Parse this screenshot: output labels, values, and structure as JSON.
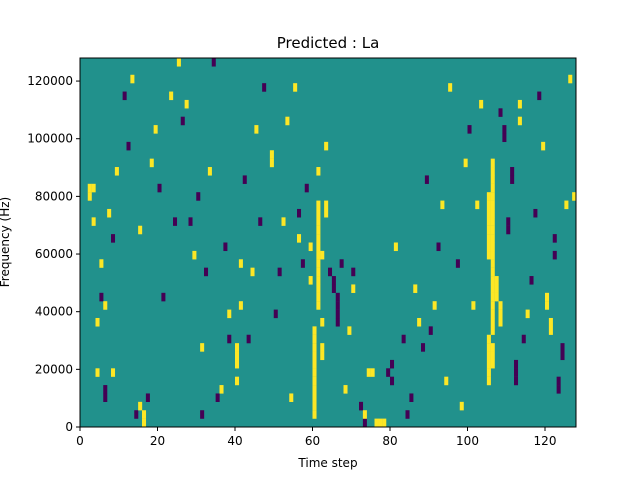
{
  "chart_data": {
    "type": "heatmap",
    "title": "Predicted : La",
    "xlabel": "Time step",
    "ylabel": "Frequency (Hz)",
    "xlim": [
      0,
      128
    ],
    "ylim": [
      0,
      128000
    ],
    "x_ticks": [
      0,
      20,
      40,
      60,
      80,
      100,
      120
    ],
    "y_ticks": [
      0,
      20000,
      40000,
      60000,
      80000,
      100000,
      120000
    ],
    "y_tick_labels": [
      "0",
      "20000",
      "40000",
      "60000",
      "80000",
      "100000",
      "120000"
    ],
    "grid": false,
    "legend": "none",
    "colormap": "viridis",
    "colors": {
      "low": "#440154",
      "mid": "#21918c",
      "high": "#fde725"
    },
    "value_levels": {
      "low": -1,
      "mid": 0,
      "high": 1
    },
    "rows": 44,
    "cols": 128,
    "bin_hz": 2909,
    "cells": [
      [
        2,
        28,
        1
      ],
      [
        2,
        27,
        1
      ],
      [
        3,
        28,
        1
      ],
      [
        3,
        24,
        1
      ],
      [
        4,
        6,
        1
      ],
      [
        4,
        12,
        1
      ],
      [
        5,
        15,
        -1
      ],
      [
        5,
        19,
        1
      ],
      [
        6,
        3,
        -1
      ],
      [
        6,
        4,
        -1
      ],
      [
        6,
        14,
        1
      ],
      [
        7,
        25,
        1
      ],
      [
        8,
        22,
        -1
      ],
      [
        8,
        6,
        1
      ],
      [
        9,
        30,
        1
      ],
      [
        11,
        39,
        -1
      ],
      [
        12,
        33,
        -1
      ],
      [
        13,
        41,
        1
      ],
      [
        14,
        1,
        -1
      ],
      [
        15,
        2,
        1
      ],
      [
        15,
        23,
        1
      ],
      [
        16,
        0,
        1
      ],
      [
        16,
        1,
        1
      ],
      [
        17,
        3,
        -1
      ],
      [
        18,
        31,
        1
      ],
      [
        19,
        35,
        1
      ],
      [
        20,
        28,
        -1
      ],
      [
        21,
        15,
        -1
      ],
      [
        23,
        39,
        1
      ],
      [
        24,
        24,
        -1
      ],
      [
        25,
        43,
        1
      ],
      [
        26,
        36,
        -1
      ],
      [
        27,
        38,
        1
      ],
      [
        28,
        24,
        -1
      ],
      [
        29,
        20,
        1
      ],
      [
        30,
        27,
        -1
      ],
      [
        31,
        1,
        -1
      ],
      [
        31,
        9,
        1
      ],
      [
        32,
        18,
        -1
      ],
      [
        33,
        30,
        1
      ],
      [
        34,
        43,
        -1
      ],
      [
        35,
        3,
        -1
      ],
      [
        36,
        4,
        1
      ],
      [
        37,
        21,
        -1
      ],
      [
        38,
        13,
        1
      ],
      [
        38,
        10,
        -1
      ],
      [
        40,
        5,
        1
      ],
      [
        40,
        7,
        1
      ],
      [
        40,
        8,
        1
      ],
      [
        40,
        9,
        1
      ],
      [
        41,
        14,
        1
      ],
      [
        41,
        19,
        1
      ],
      [
        42,
        29,
        -1
      ],
      [
        43,
        10,
        -1
      ],
      [
        44,
        18,
        1
      ],
      [
        45,
        35,
        1
      ],
      [
        46,
        24,
        -1
      ],
      [
        47,
        40,
        -1
      ],
      [
        49,
        31,
        1
      ],
      [
        49,
        32,
        1
      ],
      [
        50,
        13,
        -1
      ],
      [
        51,
        18,
        -1
      ],
      [
        52,
        24,
        1
      ],
      [
        53,
        36,
        1
      ],
      [
        54,
        3,
        1
      ],
      [
        55,
        40,
        1
      ],
      [
        56,
        22,
        1
      ],
      [
        56,
        25,
        -1
      ],
      [
        57,
        19,
        -1
      ],
      [
        58,
        28,
        -1
      ],
      [
        59,
        17,
        1
      ],
      [
        59,
        21,
        1
      ],
      [
        60,
        1,
        1
      ],
      [
        60,
        2,
        1
      ],
      [
        60,
        3,
        1
      ],
      [
        60,
        4,
        1
      ],
      [
        60,
        5,
        1
      ],
      [
        60,
        6,
        1
      ],
      [
        60,
        7,
        1
      ],
      [
        60,
        8,
        1
      ],
      [
        60,
        9,
        1
      ],
      [
        60,
        10,
        1
      ],
      [
        60,
        11,
        1
      ],
      [
        61,
        14,
        1
      ],
      [
        61,
        15,
        1
      ],
      [
        61,
        16,
        1
      ],
      [
        61,
        17,
        1
      ],
      [
        61,
        18,
        1
      ],
      [
        61,
        19,
        1
      ],
      [
        61,
        20,
        1
      ],
      [
        61,
        21,
        1
      ],
      [
        61,
        22,
        1
      ],
      [
        61,
        23,
        1
      ],
      [
        61,
        24,
        1
      ],
      [
        61,
        25,
        1
      ],
      [
        61,
        26,
        1
      ],
      [
        61,
        30,
        1
      ],
      [
        62,
        8,
        1
      ],
      [
        62,
        9,
        1
      ],
      [
        62,
        12,
        1
      ],
      [
        62,
        20,
        1
      ],
      [
        63,
        25,
        1
      ],
      [
        63,
        26,
        1
      ],
      [
        63,
        33,
        1
      ],
      [
        64,
        18,
        -1
      ],
      [
        65,
        16,
        -1
      ],
      [
        65,
        17,
        -1
      ],
      [
        66,
        12,
        -1
      ],
      [
        66,
        13,
        -1
      ],
      [
        66,
        14,
        -1
      ],
      [
        66,
        15,
        -1
      ],
      [
        67,
        19,
        -1
      ],
      [
        68,
        4,
        1
      ],
      [
        69,
        11,
        1
      ],
      [
        70,
        16,
        1
      ],
      [
        70,
        18,
        -1
      ],
      [
        72,
        2,
        -1
      ],
      [
        73,
        0,
        -1
      ],
      [
        73,
        1,
        1
      ],
      [
        74,
        6,
        1
      ],
      [
        75,
        6,
        1
      ],
      [
        76,
        0,
        1
      ],
      [
        77,
        0,
        1
      ],
      [
        78,
        0,
        1
      ],
      [
        79,
        6,
        -1
      ],
      [
        80,
        5,
        -1
      ],
      [
        80,
        7,
        -1
      ],
      [
        81,
        21,
        1
      ],
      [
        83,
        10,
        -1
      ],
      [
        84,
        1,
        -1
      ],
      [
        85,
        3,
        -1
      ],
      [
        86,
        16,
        1
      ],
      [
        87,
        12,
        1
      ],
      [
        88,
        9,
        -1
      ],
      [
        89,
        29,
        -1
      ],
      [
        90,
        11,
        -1
      ],
      [
        91,
        14,
        1
      ],
      [
        92,
        21,
        -1
      ],
      [
        93,
        26,
        1
      ],
      [
        94,
        5,
        1
      ],
      [
        95,
        40,
        1
      ],
      [
        97,
        19,
        -1
      ],
      [
        98,
        2,
        1
      ],
      [
        99,
        31,
        1
      ],
      [
        100,
        35,
        -1
      ],
      [
        101,
        14,
        1
      ],
      [
        102,
        26,
        1
      ],
      [
        103,
        38,
        1
      ],
      [
        105,
        5,
        1
      ],
      [
        105,
        6,
        1
      ],
      [
        105,
        7,
        1
      ],
      [
        105,
        8,
        1
      ],
      [
        105,
        9,
        1
      ],
      [
        105,
        10,
        1
      ],
      [
        105,
        20,
        1
      ],
      [
        105,
        21,
        1
      ],
      [
        105,
        22,
        1
      ],
      [
        105,
        23,
        1
      ],
      [
        105,
        24,
        1
      ],
      [
        105,
        25,
        1
      ],
      [
        105,
        26,
        1
      ],
      [
        105,
        27,
        1
      ],
      [
        106,
        7,
        1
      ],
      [
        106,
        8,
        1
      ],
      [
        106,
        9,
        1
      ],
      [
        106,
        11,
        1
      ],
      [
        106,
        12,
        1
      ],
      [
        106,
        13,
        1
      ],
      [
        106,
        14,
        1
      ],
      [
        106,
        15,
        1
      ],
      [
        106,
        16,
        1
      ],
      [
        106,
        17,
        1
      ],
      [
        106,
        18,
        1
      ],
      [
        106,
        19,
        1
      ],
      [
        106,
        20,
        1
      ],
      [
        106,
        21,
        1
      ],
      [
        106,
        22,
        1
      ],
      [
        106,
        23,
        1
      ],
      [
        106,
        24,
        1
      ],
      [
        106,
        25,
        1
      ],
      [
        106,
        26,
        1
      ],
      [
        106,
        27,
        1
      ],
      [
        106,
        28,
        1
      ],
      [
        106,
        29,
        1
      ],
      [
        106,
        30,
        1
      ],
      [
        106,
        31,
        1
      ],
      [
        107,
        15,
        1
      ],
      [
        107,
        16,
        1
      ],
      [
        107,
        17,
        1
      ],
      [
        108,
        12,
        1
      ],
      [
        108,
        13,
        1
      ],
      [
        108,
        14,
        1
      ],
      [
        108,
        37,
        -1
      ],
      [
        109,
        34,
        -1
      ],
      [
        109,
        35,
        -1
      ],
      [
        110,
        23,
        -1
      ],
      [
        110,
        24,
        -1
      ],
      [
        111,
        29,
        -1
      ],
      [
        111,
        30,
        -1
      ],
      [
        112,
        5,
        -1
      ],
      [
        112,
        6,
        -1
      ],
      [
        112,
        7,
        -1
      ],
      [
        113,
        36,
        1
      ],
      [
        113,
        38,
        1
      ],
      [
        114,
        10,
        -1
      ],
      [
        115,
        13,
        1
      ],
      [
        116,
        17,
        -1
      ],
      [
        117,
        25,
        -1
      ],
      [
        118,
        39,
        -1
      ],
      [
        119,
        33,
        1
      ],
      [
        120,
        14,
        1
      ],
      [
        120,
        15,
        1
      ],
      [
        121,
        11,
        1
      ],
      [
        121,
        12,
        1
      ],
      [
        122,
        20,
        -1
      ],
      [
        122,
        22,
        -1
      ],
      [
        123,
        4,
        -1
      ],
      [
        123,
        5,
        -1
      ],
      [
        124,
        8,
        -1
      ],
      [
        124,
        9,
        -1
      ],
      [
        125,
        26,
        1
      ],
      [
        126,
        41,
        1
      ],
      [
        127,
        27,
        1
      ]
    ]
  }
}
